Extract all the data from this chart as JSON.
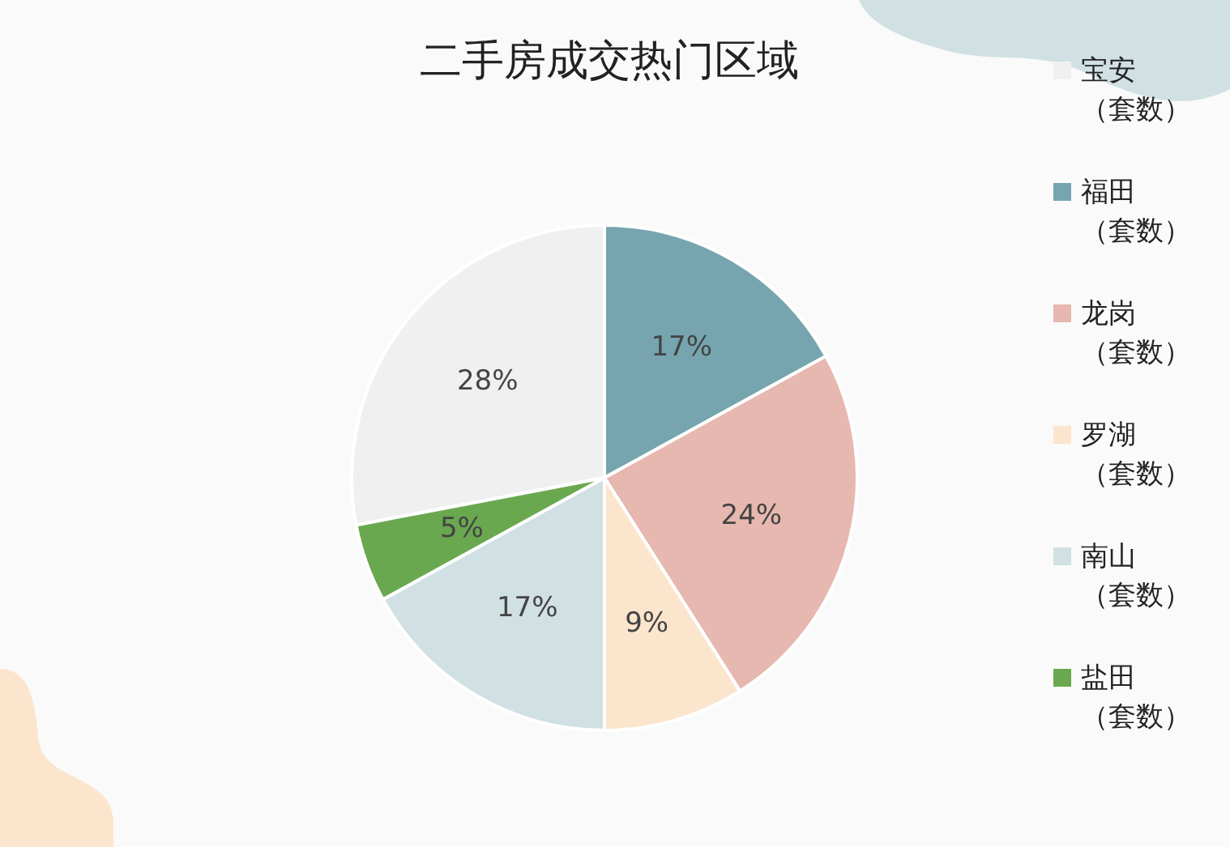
{
  "chart_data": {
    "type": "pie",
    "title": "二手房成交热门区域",
    "categories": [
      "宝安（套数）",
      "福田（套数）",
      "龙岗（套数）",
      "罗湖（套数）",
      "南山（套数）",
      "盐田（套数）"
    ],
    "values": [
      28,
      17,
      24,
      9,
      17,
      5
    ],
    "colors": [
      "#f0f0f0",
      "#76a5af",
      "#e6b8af",
      "#fce5cd",
      "#d0e0e3",
      "#6aa84f"
    ],
    "value_labels": [
      "28%",
      "17%",
      "24%",
      "9%",
      "17%",
      "5%"
    ],
    "legend": "right"
  }
}
